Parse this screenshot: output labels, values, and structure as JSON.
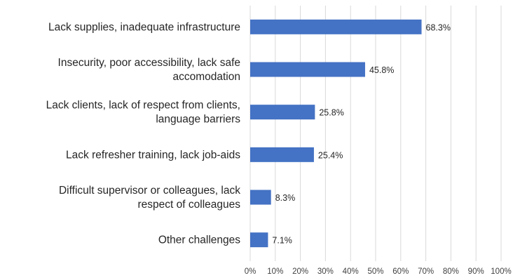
{
  "chart_data": {
    "type": "bar",
    "orientation": "horizontal",
    "categories": [
      [
        "Lack supplies, inadequate infrastructure"
      ],
      [
        "Insecurity, poor accessibility, lack safe",
        "accomodation"
      ],
      [
        "Lack clients, lack of respect from clients,",
        "language barriers"
      ],
      [
        "Lack refresher training, lack job-aids"
      ],
      [
        "Difficult supervisor or colleagues, lack",
        "respect of colleagues"
      ],
      [
        "Other challenges"
      ]
    ],
    "values": [
      68.3,
      45.8,
      25.8,
      25.4,
      8.3,
      7.1
    ],
    "data_labels": [
      "68.3%",
      "45.8%",
      "25.8%",
      "25.4%",
      "8.3%",
      "7.1%"
    ],
    "x_ticks": [
      "0%",
      "10%",
      "20%",
      "30%",
      "40%",
      "50%",
      "60%",
      "70%",
      "80%",
      "90%",
      "100%"
    ],
    "xlim": [
      0,
      100
    ],
    "grid": true,
    "legend": "none",
    "title": "",
    "xlabel": "",
    "ylabel": "",
    "colors": {
      "bar": "#4472C4",
      "grid": "#D9D9D9",
      "text": "#262626"
    }
  }
}
